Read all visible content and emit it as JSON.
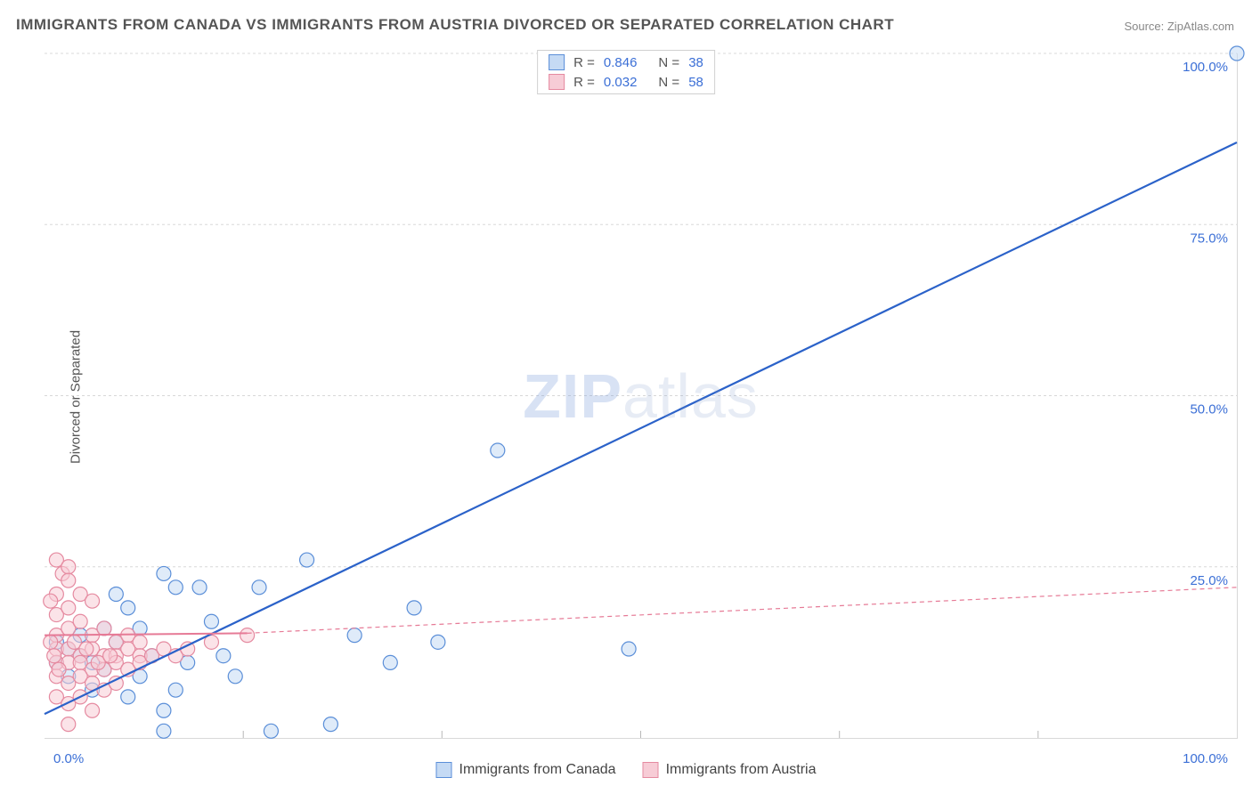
{
  "title": "IMMIGRANTS FROM CANADA VS IMMIGRANTS FROM AUSTRIA DIVORCED OR SEPARATED CORRELATION CHART",
  "source": "Source: ZipAtlas.com",
  "y_axis_label": "Divorced or Separated",
  "watermark": {
    "bold": "ZIP",
    "rest": "atlas"
  },
  "chart": {
    "type": "scatter",
    "background_color": "#ffffff",
    "grid_color": "#d8d8d8",
    "axis_color": "#d8d8d8",
    "tick_label_color": "#3b6fd6",
    "tick_fontsize": 15,
    "xlim": [
      0,
      100
    ],
    "ylim": [
      0,
      100
    ],
    "y_ticks": [
      25,
      50,
      75,
      100
    ],
    "y_tick_labels": [
      "25.0%",
      "50.0%",
      "75.0%",
      "100.0%"
    ],
    "x_ticks": [
      0,
      100
    ],
    "x_tick_labels": [
      "0.0%",
      "100.0%"
    ],
    "x_minor_ticks": [
      16.67,
      33.33,
      50,
      66.67,
      83.33
    ],
    "point_radius": 8,
    "point_stroke_width": 1.2,
    "point_opacity": 0.55,
    "series": [
      {
        "name": "Immigrants from Canada",
        "fill": "#c5daf4",
        "stroke": "#5a8ed8",
        "R": 0.846,
        "N": 38,
        "points": [
          [
            100,
            100
          ],
          [
            38,
            42
          ],
          [
            49,
            13
          ],
          [
            31,
            19
          ],
          [
            24,
            2
          ],
          [
            19,
            1
          ],
          [
            16,
            9
          ],
          [
            18,
            22
          ],
          [
            13,
            22
          ],
          [
            11,
            22
          ],
          [
            10,
            24
          ],
          [
            22,
            26
          ],
          [
            15,
            12
          ],
          [
            14,
            17
          ],
          [
            12,
            11
          ],
          [
            11,
            7
          ],
          [
            10,
            4
          ],
          [
            9,
            12
          ],
          [
            8,
            9
          ],
          [
            8,
            16
          ],
          [
            7,
            19
          ],
          [
            7,
            6
          ],
          [
            6,
            21
          ],
          [
            6,
            14
          ],
          [
            5,
            10
          ],
          [
            5,
            16
          ],
          [
            4,
            11
          ],
          [
            4,
            7
          ],
          [
            3,
            12
          ],
          [
            3,
            15
          ],
          [
            2,
            9
          ],
          [
            2,
            13
          ],
          [
            1,
            11
          ],
          [
            1,
            14
          ],
          [
            26,
            15
          ],
          [
            29,
            11
          ],
          [
            33,
            14
          ],
          [
            10,
            1
          ]
        ],
        "trend": {
          "x1": 0,
          "y1": 3.5,
          "x2": 100,
          "y2": 87,
          "color": "#2b62c9",
          "width": 2.2,
          "dash": ""
        }
      },
      {
        "name": "Immigrants from Austria",
        "fill": "#f7ccd6",
        "stroke": "#e58aa0",
        "R": 0.032,
        "N": 58,
        "points": [
          [
            1,
            26
          ],
          [
            1.5,
            24
          ],
          [
            2,
            25
          ],
          [
            2,
            23
          ],
          [
            1,
            21
          ],
          [
            0.5,
            20
          ],
          [
            1,
            18
          ],
          [
            2,
            19
          ],
          [
            3,
            21
          ],
          [
            4,
            20
          ],
          [
            1,
            15
          ],
          [
            2,
            16
          ],
          [
            3,
            17
          ],
          [
            4,
            15
          ],
          [
            5,
            16
          ],
          [
            6,
            14
          ],
          [
            7,
            15
          ],
          [
            8,
            14
          ],
          [
            1,
            13
          ],
          [
            2,
            13
          ],
          [
            3,
            12
          ],
          [
            4,
            13
          ],
          [
            5,
            12
          ],
          [
            6,
            12
          ],
          [
            7,
            13
          ],
          [
            8,
            12
          ],
          [
            1,
            11
          ],
          [
            2,
            11
          ],
          [
            3,
            11
          ],
          [
            4,
            10
          ],
          [
            5,
            10
          ],
          [
            6,
            11
          ],
          [
            7,
            10
          ],
          [
            8,
            11
          ],
          [
            9,
            12
          ],
          [
            10,
            13
          ],
          [
            11,
            12
          ],
          [
            12,
            13
          ],
          [
            1,
            9
          ],
          [
            2,
            8
          ],
          [
            3,
            9
          ],
          [
            4,
            8
          ],
          [
            5,
            7
          ],
          [
            6,
            8
          ],
          [
            1,
            6
          ],
          [
            2,
            5
          ],
          [
            3,
            6
          ],
          [
            4,
            4
          ],
          [
            17,
            15
          ],
          [
            14,
            14
          ],
          [
            0.5,
            14
          ],
          [
            0.8,
            12
          ],
          [
            1.2,
            10
          ],
          [
            2.5,
            14
          ],
          [
            3.5,
            13
          ],
          [
            4.5,
            11
          ],
          [
            5.5,
            12
          ],
          [
            2,
            2
          ]
        ],
        "trend": {
          "x1": 0,
          "y1": 15,
          "x2": 17,
          "y2": 15.3,
          "color": "#e67a96",
          "width": 2,
          "dash": "",
          "ext_x1": 17,
          "ext_y1": 15.3,
          "ext_x2": 100,
          "ext_y2": 22,
          "ext_dash": "5,4"
        }
      }
    ]
  },
  "stat_legend": {
    "rows": [
      {
        "fill": "#c5daf4",
        "stroke": "#5a8ed8",
        "R_label": "R =",
        "R_val": "0.846",
        "N_label": "N =",
        "N_val": "38"
      },
      {
        "fill": "#f7ccd6",
        "stroke": "#e58aa0",
        "R_label": "R =",
        "R_val": "0.032",
        "N_label": "N =",
        "N_val": "58"
      }
    ]
  },
  "bottom_legend": {
    "items": [
      {
        "fill": "#c5daf4",
        "stroke": "#5a8ed8",
        "label": "Immigrants from Canada"
      },
      {
        "fill": "#f7ccd6",
        "stroke": "#e58aa0",
        "label": "Immigrants from Austria"
      }
    ]
  }
}
